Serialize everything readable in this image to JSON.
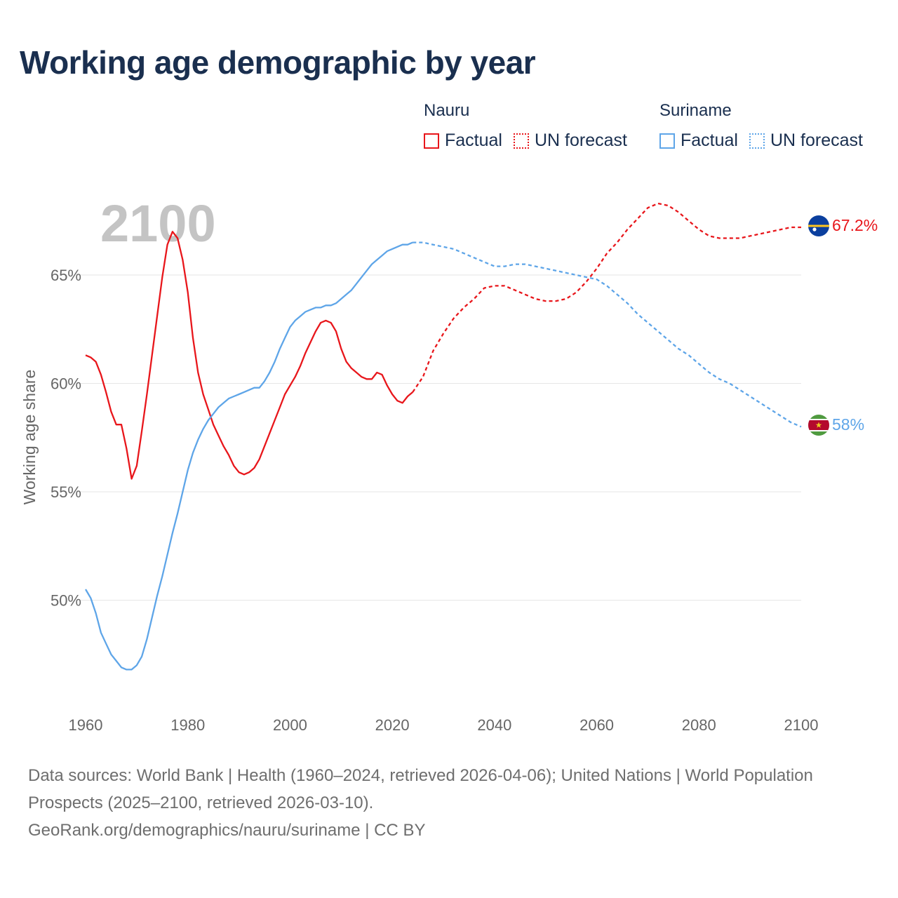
{
  "title": "Working age demographic by year",
  "legend": {
    "groups": [
      {
        "name": "Nauru",
        "color": "#e8161b",
        "factual": "Factual",
        "forecast": "UN forecast"
      },
      {
        "name": "Suriname",
        "color": "#5ea5e8",
        "factual": "Factual",
        "forecast": "UN forecast"
      }
    ]
  },
  "year_watermark": "2100",
  "end_labels": {
    "nauru": "67.2%",
    "suriname": "58%"
  },
  "footer": {
    "sources": "Data sources: World Bank | Health (1960–2024, retrieved 2026-04-06); United Nations | World Population Prospects (2025–2100, retrieved 2026-03-10).",
    "credit": "GeoRank.org/demographics/nauru/suriname | CC BY"
  },
  "chart_data": {
    "type": "line",
    "title": "Working age demographic by year",
    "ylabel": "Working age share",
    "xlabel": "",
    "xlim": [
      1960,
      2103
    ],
    "ylim": [
      45.5,
      69
    ],
    "x_ticks": [
      1960,
      1980,
      2000,
      2020,
      2040,
      2060,
      2080,
      2100
    ],
    "x_tick_labels": [
      "1960",
      "1980",
      "2000",
      "2020",
      "2040",
      "2060",
      "2080",
      "2100"
    ],
    "y_ticks": [
      50,
      55,
      60,
      65
    ],
    "y_tick_labels": [
      "50%",
      "55%",
      "60%",
      "65%"
    ],
    "grid": true,
    "forecast_start": 2024,
    "series": [
      {
        "name": "Nauru",
        "color": "#e8161b",
        "points": [
          [
            1960,
            61.3
          ],
          [
            1961,
            61.2
          ],
          [
            1962,
            61.0
          ],
          [
            1963,
            60.4
          ],
          [
            1964,
            59.6
          ],
          [
            1965,
            58.7
          ],
          [
            1966,
            58.1
          ],
          [
            1967,
            58.1
          ],
          [
            1968,
            57.0
          ],
          [
            1969,
            55.6
          ],
          [
            1970,
            56.2
          ],
          [
            1971,
            57.8
          ],
          [
            1972,
            59.5
          ],
          [
            1973,
            61.3
          ],
          [
            1974,
            63.1
          ],
          [
            1975,
            64.9
          ],
          [
            1976,
            66.4
          ],
          [
            1977,
            67.0
          ],
          [
            1978,
            66.7
          ],
          [
            1979,
            65.7
          ],
          [
            1980,
            64.2
          ],
          [
            1981,
            62.1
          ],
          [
            1982,
            60.5
          ],
          [
            1983,
            59.5
          ],
          [
            1984,
            58.8
          ],
          [
            1985,
            58.1
          ],
          [
            1986,
            57.6
          ],
          [
            1987,
            57.1
          ],
          [
            1988,
            56.7
          ],
          [
            1989,
            56.2
          ],
          [
            1990,
            55.9
          ],
          [
            1991,
            55.8
          ],
          [
            1992,
            55.9
          ],
          [
            1993,
            56.1
          ],
          [
            1994,
            56.5
          ],
          [
            1995,
            57.1
          ],
          [
            1996,
            57.7
          ],
          [
            1997,
            58.3
          ],
          [
            1998,
            58.9
          ],
          [
            1999,
            59.5
          ],
          [
            2000,
            59.9
          ],
          [
            2001,
            60.3
          ],
          [
            2002,
            60.8
          ],
          [
            2003,
            61.4
          ],
          [
            2004,
            61.9
          ],
          [
            2005,
            62.4
          ],
          [
            2006,
            62.8
          ],
          [
            2007,
            62.9
          ],
          [
            2008,
            62.8
          ],
          [
            2009,
            62.4
          ],
          [
            2010,
            61.6
          ],
          [
            2011,
            61.0
          ],
          [
            2012,
            60.7
          ],
          [
            2013,
            60.5
          ],
          [
            2014,
            60.3
          ],
          [
            2015,
            60.2
          ],
          [
            2016,
            60.2
          ],
          [
            2017,
            60.5
          ],
          [
            2018,
            60.4
          ],
          [
            2019,
            59.9
          ],
          [
            2020,
            59.5
          ],
          [
            2021,
            59.2
          ],
          [
            2022,
            59.1
          ],
          [
            2023,
            59.4
          ],
          [
            2024,
            59.6
          ],
          [
            2026,
            60.3
          ],
          [
            2028,
            61.5
          ],
          [
            2030,
            62.3
          ],
          [
            2032,
            63.0
          ],
          [
            2034,
            63.5
          ],
          [
            2036,
            63.9
          ],
          [
            2038,
            64.4
          ],
          [
            2040,
            64.5
          ],
          [
            2042,
            64.5
          ],
          [
            2044,
            64.3
          ],
          [
            2046,
            64.1
          ],
          [
            2048,
            63.9
          ],
          [
            2050,
            63.8
          ],
          [
            2052,
            63.8
          ],
          [
            2054,
            63.9
          ],
          [
            2056,
            64.2
          ],
          [
            2058,
            64.7
          ],
          [
            2060,
            65.3
          ],
          [
            2062,
            66.0
          ],
          [
            2064,
            66.5
          ],
          [
            2066,
            67.1
          ],
          [
            2068,
            67.6
          ],
          [
            2070,
            68.1
          ],
          [
            2072,
            68.3
          ],
          [
            2074,
            68.2
          ],
          [
            2076,
            67.9
          ],
          [
            2078,
            67.5
          ],
          [
            2080,
            67.1
          ],
          [
            2082,
            66.8
          ],
          [
            2084,
            66.7
          ],
          [
            2086,
            66.7
          ],
          [
            2088,
            66.7
          ],
          [
            2090,
            66.8
          ],
          [
            2092,
            66.9
          ],
          [
            2094,
            67.0
          ],
          [
            2096,
            67.1
          ],
          [
            2098,
            67.2
          ],
          [
            2100,
            67.2
          ]
        ]
      },
      {
        "name": "Suriname",
        "color": "#5ea5e8",
        "points": [
          [
            1960,
            50.5
          ],
          [
            1961,
            50.1
          ],
          [
            1962,
            49.4
          ],
          [
            1963,
            48.5
          ],
          [
            1964,
            48.0
          ],
          [
            1965,
            47.5
          ],
          [
            1966,
            47.2
          ],
          [
            1967,
            46.9
          ],
          [
            1968,
            46.8
          ],
          [
            1969,
            46.8
          ],
          [
            1970,
            47.0
          ],
          [
            1971,
            47.4
          ],
          [
            1972,
            48.2
          ],
          [
            1973,
            49.2
          ],
          [
            1974,
            50.2
          ],
          [
            1975,
            51.1
          ],
          [
            1976,
            52.1
          ],
          [
            1977,
            53.1
          ],
          [
            1978,
            54.0
          ],
          [
            1979,
            55.0
          ],
          [
            1980,
            56.0
          ],
          [
            1981,
            56.8
          ],
          [
            1982,
            57.4
          ],
          [
            1983,
            57.9
          ],
          [
            1984,
            58.3
          ],
          [
            1985,
            58.6
          ],
          [
            1986,
            58.9
          ],
          [
            1987,
            59.1
          ],
          [
            1988,
            59.3
          ],
          [
            1989,
            59.4
          ],
          [
            1990,
            59.5
          ],
          [
            1991,
            59.6
          ],
          [
            1992,
            59.7
          ],
          [
            1993,
            59.8
          ],
          [
            1994,
            59.8
          ],
          [
            1995,
            60.1
          ],
          [
            1996,
            60.5
          ],
          [
            1997,
            61.0
          ],
          [
            1998,
            61.6
          ],
          [
            1999,
            62.1
          ],
          [
            2000,
            62.6
          ],
          [
            2001,
            62.9
          ],
          [
            2002,
            63.1
          ],
          [
            2003,
            63.3
          ],
          [
            2004,
            63.4
          ],
          [
            2005,
            63.5
          ],
          [
            2006,
            63.5
          ],
          [
            2007,
            63.6
          ],
          [
            2008,
            63.6
          ],
          [
            2009,
            63.7
          ],
          [
            2010,
            63.9
          ],
          [
            2011,
            64.1
          ],
          [
            2012,
            64.3
          ],
          [
            2013,
            64.6
          ],
          [
            2014,
            64.9
          ],
          [
            2015,
            65.2
          ],
          [
            2016,
            65.5
          ],
          [
            2017,
            65.7
          ],
          [
            2018,
            65.9
          ],
          [
            2019,
            66.1
          ],
          [
            2020,
            66.2
          ],
          [
            2021,
            66.3
          ],
          [
            2022,
            66.4
          ],
          [
            2023,
            66.4
          ],
          [
            2024,
            66.5
          ],
          [
            2026,
            66.5
          ],
          [
            2028,
            66.4
          ],
          [
            2030,
            66.3
          ],
          [
            2032,
            66.2
          ],
          [
            2034,
            66.0
          ],
          [
            2036,
            65.8
          ],
          [
            2038,
            65.6
          ],
          [
            2040,
            65.4
          ],
          [
            2042,
            65.4
          ],
          [
            2044,
            65.5
          ],
          [
            2046,
            65.5
          ],
          [
            2048,
            65.4
          ],
          [
            2050,
            65.3
          ],
          [
            2052,
            65.2
          ],
          [
            2054,
            65.1
          ],
          [
            2056,
            65.0
          ],
          [
            2058,
            64.9
          ],
          [
            2060,
            64.8
          ],
          [
            2062,
            64.5
          ],
          [
            2064,
            64.1
          ],
          [
            2066,
            63.7
          ],
          [
            2068,
            63.2
          ],
          [
            2070,
            62.8
          ],
          [
            2072,
            62.4
          ],
          [
            2074,
            62.0
          ],
          [
            2076,
            61.6
          ],
          [
            2078,
            61.3
          ],
          [
            2080,
            60.9
          ],
          [
            2082,
            60.5
          ],
          [
            2084,
            60.2
          ],
          [
            2086,
            60.0
          ],
          [
            2088,
            59.7
          ],
          [
            2090,
            59.4
          ],
          [
            2092,
            59.1
          ],
          [
            2094,
            58.8
          ],
          [
            2096,
            58.5
          ],
          [
            2098,
            58.2
          ],
          [
            2100,
            58.0
          ]
        ]
      }
    ]
  }
}
